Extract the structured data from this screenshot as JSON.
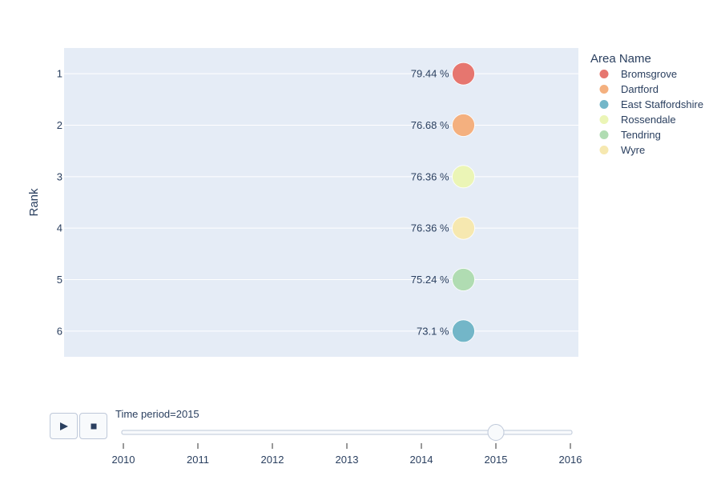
{
  "chart_data": {
    "type": "scatter",
    "xlabel": "",
    "ylabel": "Rank",
    "y_categories": [
      "1",
      "2",
      "3",
      "4",
      "5",
      "6"
    ],
    "legend": {
      "title": "Area Name",
      "placement": "right",
      "entries": [
        {
          "name": "Bromsgrove",
          "color": "#e6766f"
        },
        {
          "name": "Dartford",
          "color": "#f4b07f"
        },
        {
          "name": "East Staffordshire",
          "color": "#73b6c8"
        },
        {
          "name": "Rossendale",
          "color": "#ebf5b6"
        },
        {
          "name": "Tendring",
          "color": "#b0dcb2"
        },
        {
          "name": "Wyre",
          "color": "#f6e8b0"
        }
      ]
    },
    "points": [
      {
        "series": "Bromsgrove",
        "rank": 1,
        "label": "79.44 %"
      },
      {
        "series": "Dartford",
        "rank": 2,
        "label": "76.68 %"
      },
      {
        "series": "Rossendale",
        "rank": 3,
        "label": "76.36 %"
      },
      {
        "series": "Wyre",
        "rank": 4,
        "label": "76.36 %"
      },
      {
        "series": "Tendring",
        "rank": 5,
        "label": "75.24 %"
      },
      {
        "series": "East Staffordshire",
        "rank": 6,
        "label": "73.1 %"
      }
    ],
    "grid": true,
    "plot_background": "#e5ecf6"
  },
  "slider": {
    "current_label": "Time period=2015",
    "ticks": [
      "2010",
      "2011",
      "2012",
      "2013",
      "2014",
      "2015",
      "2016"
    ],
    "value": "2015"
  },
  "controls": {
    "play_icon": "play-icon",
    "stop_icon": "stop-icon"
  }
}
